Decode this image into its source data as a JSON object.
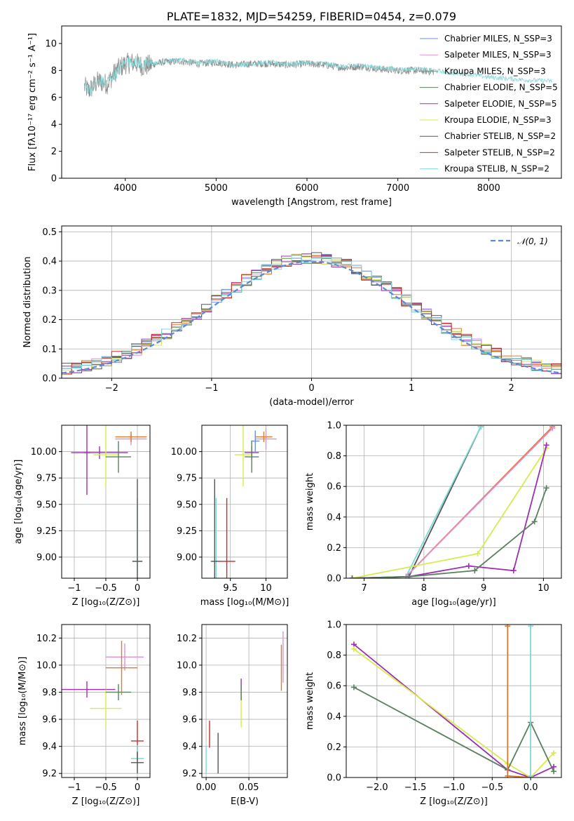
{
  "chart_data": [
    {
      "id": "spectrum",
      "type": "line",
      "title": "PLATE=1832, MJD=54259, FIBERID=0454, z=0.079",
      "xlabel": "wavelength [Angstrom, rest frame]",
      "ylabel": "Flux [fλ10⁻¹⁷ erg cm⁻² s⁻¹ A⁻¹]",
      "xlim": [
        3300,
        8800
      ],
      "ylim": [
        0,
        11.3
      ],
      "xticks": [
        4000,
        5000,
        6000,
        7000,
        8000
      ],
      "yticks": [
        0,
        2,
        4,
        6,
        8,
        10
      ],
      "grid": false,
      "legend_position": "top-right",
      "legend": [
        {
          "label": "Chabrier MILES, N_SSP=3",
          "color": "#6b8fd6"
        },
        {
          "label": "Salpeter MILES, N_SSP=3",
          "color": "#e08fd0"
        },
        {
          "label": "Kroupa MILES, N_SSP=3",
          "color": "#e0782e"
        },
        {
          "label": "Chabrier ELODIE, N_SSP=5",
          "color": "#5a8060"
        },
        {
          "label": "Salpeter ELODIE, N_SSP=5",
          "color": "#9b2fb0"
        },
        {
          "label": "Kroupa ELODIE, N_SSP=3",
          "color": "#d8ea4f"
        },
        {
          "label": "Chabrier STELIB, N_SSP=2",
          "color": "#555555"
        },
        {
          "label": "Salpeter STELIB, N_SSP=2",
          "color": "#c0302a"
        },
        {
          "label": "Kroupa STELIB, N_SSP=2",
          "color": "#7fd8d8"
        }
      ],
      "data_series": [
        {
          "name": "Data",
          "color": "#808080",
          "x": [
            3550,
            3600,
            3700,
            3800,
            3900,
            4000,
            4100,
            4200,
            4400,
            4600,
            4800,
            5000,
            5200,
            5400,
            5600,
            5800,
            6000,
            6200,
            6400,
            6600,
            6800,
            7000,
            7200,
            7400
          ],
          "y": [
            6.8,
            6.5,
            7.2,
            7.0,
            8.0,
            8.5,
            8.6,
            8.3,
            8.6,
            8.7,
            8.5,
            8.6,
            8.4,
            8.5,
            8.5,
            8.4,
            8.5,
            8.4,
            8.2,
            8.3,
            8.1,
            8.0,
            8.0,
            7.9
          ]
        },
        {
          "name": "Model",
          "color": "#7fd8d8",
          "x": [
            3550,
            3600,
            3700,
            3800,
            3900,
            4000,
            4100,
            4200,
            4400,
            4600,
            4800,
            5000,
            5200,
            5400,
            5600,
            5800,
            6000,
            6200,
            6400,
            6600,
            6800,
            7000,
            7200,
            7400,
            7600,
            7800,
            8000,
            8200,
            8400,
            8700
          ],
          "y": [
            6.9,
            6.6,
            7.1,
            7.2,
            7.8,
            8.6,
            8.7,
            8.4,
            8.6,
            8.8,
            8.6,
            8.7,
            8.4,
            8.5,
            8.6,
            8.5,
            8.6,
            8.5,
            8.3,
            8.4,
            8.2,
            8.1,
            8.1,
            8.0,
            7.8,
            7.7,
            7.5,
            7.4,
            7.3,
            7.2
          ]
        }
      ]
    },
    {
      "id": "residuals",
      "type": "line",
      "xlabel": "(data-model)/error",
      "ylabel": "Normed distribution",
      "xlim": [
        -2.5,
        2.5
      ],
      "ylim": [
        0,
        0.52
      ],
      "xticks": [
        -2,
        -1,
        0,
        1,
        2
      ],
      "yticks": [
        0.0,
        0.1,
        0.2,
        0.3,
        0.4,
        0.5
      ],
      "grid": true,
      "legend_position": "top-right",
      "gaussian_label": "𝒩(0, 1)",
      "gaussian_color": "#5a8ad6"
    },
    {
      "id": "z-age",
      "type": "scatter",
      "xlabel": "Z [log₁₀(Z/Z⊙)]",
      "ylabel": "age  [log₁₀(age/yr)]",
      "xlim": [
        -1.2,
        0.2
      ],
      "ylim": [
        8.8,
        10.25
      ],
      "xticks": [
        -1,
        -0.5,
        0
      ],
      "yticks": [
        9.0,
        9.25,
        9.5,
        9.75,
        10.0
      ],
      "grid": true,
      "points": [
        {
          "x": -0.6,
          "y": 9.99,
          "xerr": 0.45,
          "yerr": 0.06,
          "color": "#9b2fb0"
        },
        {
          "x": -0.8,
          "y": 9.99,
          "xerr": 0.05,
          "yerr": 0.4,
          "color": "#9b2fb0"
        },
        {
          "x": -0.5,
          "y": 9.97,
          "xerr": 0.2,
          "yerr": 0.3,
          "color": "#d8ea4f"
        },
        {
          "x": -0.3,
          "y": 9.95,
          "xerr": 0.2,
          "yerr": 0.15,
          "color": "#5a8060"
        },
        {
          "x": -0.1,
          "y": 10.12,
          "xerr": 0.25,
          "yerr": 0.06,
          "color": "#e08fd0"
        },
        {
          "x": -0.1,
          "y": 10.14,
          "xerr": 0.25,
          "yerr": 0.05,
          "color": "#e0782e"
        },
        {
          "x": 0.0,
          "y": 8.96,
          "xerr": 0.08,
          "yerr": 0.6,
          "color": "#7fd8d8"
        },
        {
          "x": 0.0,
          "y": 8.96,
          "xerr": 0.08,
          "yerr": 0.78,
          "color": "#555555"
        }
      ]
    },
    {
      "id": "mass-age",
      "type": "scatter",
      "xlabel": "mass [log₁₀(M/M⊙)]",
      "ylabel": "",
      "xlim": [
        9.1,
        10.3
      ],
      "ylim": [
        8.8,
        10.25
      ],
      "xticks": [
        9.5,
        10.0
      ],
      "yticks": [
        9.0,
        9.25,
        9.5,
        9.75,
        10.0
      ],
      "grid": true,
      "points": [
        {
          "x": 9.8,
          "y": 9.99,
          "xerr": 0.1,
          "yerr": 0.06,
          "color": "#9b2fb0"
        },
        {
          "x": 9.68,
          "y": 9.97,
          "xerr": 0.12,
          "yerr": 0.3,
          "color": "#d8ea4f"
        },
        {
          "x": 9.8,
          "y": 9.95,
          "xerr": 0.1,
          "yerr": 0.15,
          "color": "#5a8060"
        },
        {
          "x": 10.0,
          "y": 10.12,
          "xerr": 0.15,
          "yerr": 0.1,
          "color": "#e08fd0"
        },
        {
          "x": 9.97,
          "y": 10.14,
          "xerr": 0.12,
          "yerr": 0.05,
          "color": "#e0782e"
        },
        {
          "x": 9.3,
          "y": 8.96,
          "xerr": 0.08,
          "yerr": 0.6,
          "color": "#7fd8d8"
        },
        {
          "x": 9.28,
          "y": 8.96,
          "xerr": 0.05,
          "yerr": 0.78,
          "color": "#555555"
        },
        {
          "x": 9.45,
          "y": 8.96,
          "xerr": 0.12,
          "yerr": 0.6,
          "color": "#c0302a"
        },
        {
          "x": 9.85,
          "y": 10.1,
          "xerr": 0.06,
          "yerr": 0.1,
          "color": "#6b8fd6"
        }
      ]
    },
    {
      "id": "age-weight",
      "type": "line",
      "xlabel": "age  [log₁₀(age/yr)]",
      "ylabel": "mass weight",
      "xlim": [
        6.7,
        10.3
      ],
      "ylim": [
        0,
        1.0
      ],
      "xticks": [
        7,
        8,
        9,
        10
      ],
      "yticks": [
        0.0,
        0.2,
        0.4,
        0.6,
        0.8,
        1.0
      ],
      "grid": true,
      "series": [
        {
          "name": "Chabrier STELIB, N_SSP=2",
          "color": "#555555",
          "x": [
            7.75,
            8.95
          ],
          "y": [
            0.01,
            0.99
          ]
        },
        {
          "name": "Kroupa STELIB, N_SSP=2",
          "color": "#7fd8d8",
          "x": [
            7.7,
            8.95
          ],
          "y": [
            0.01,
            0.99
          ]
        },
        {
          "name": "Kroupa MILES, N_SSP=3",
          "color": "#e0782e",
          "x": [
            6.8,
            7.7,
            10.15
          ],
          "y": [
            0.0,
            0.01,
            0.99
          ]
        },
        {
          "name": "Salpeter MILES, N_SSP=3",
          "color": "#e08fd0",
          "x": [
            6.8,
            7.7,
            10.15
          ],
          "y": [
            0.0,
            0.01,
            0.98
          ]
        },
        {
          "name": "Kroupa ELODIE, N_SSP=3",
          "color": "#d8ea4f",
          "x": [
            6.8,
            8.9,
            10.05
          ],
          "y": [
            0.0,
            0.16,
            0.85
          ]
        },
        {
          "name": "Salpeter ELODIE, N_SSP=5",
          "color": "#9b2fb0",
          "x": [
            6.8,
            7.75,
            8.75,
            9.5,
            10.05
          ],
          "y": [
            0.0,
            0.01,
            0.08,
            0.05,
            0.87
          ]
        },
        {
          "name": "Chabrier ELODIE, N_SSP=5",
          "color": "#5a8060",
          "x": [
            6.8,
            7.75,
            8.85,
            9.85,
            10.05
          ],
          "y": [
            0.0,
            0.01,
            0.05,
            0.37,
            0.59
          ]
        }
      ]
    },
    {
      "id": "z-mass",
      "type": "scatter",
      "xlabel": "Z [log₁₀(Z/Z⊙)]",
      "ylabel": "mass [log₁₀(M/M⊙)]",
      "xlim": [
        -1.2,
        0.2
      ],
      "ylim": [
        9.17,
        10.3
      ],
      "xticks": [
        -1,
        -0.5,
        0
      ],
      "yticks": [
        9.2,
        9.4,
        9.6,
        9.8,
        10.0,
        10.2
      ],
      "grid": true,
      "points": [
        {
          "x": -0.8,
          "y": 9.82,
          "xerr": 0.45,
          "yerr": 0.06,
          "color": "#9b2fb0"
        },
        {
          "x": -0.5,
          "y": 9.68,
          "xerr": 0.25,
          "yerr": 0.14,
          "color": "#d8ea4f"
        },
        {
          "x": -0.3,
          "y": 9.8,
          "xerr": 0.2,
          "yerr": 0.06,
          "color": "#5a8060"
        },
        {
          "x": -0.2,
          "y": 10.06,
          "xerr": 0.3,
          "yerr": 0.1,
          "color": "#e08fd0"
        },
        {
          "x": -0.25,
          "y": 9.98,
          "xerr": 0.25,
          "yerr": 0.2,
          "color": "#e0782e"
        },
        {
          "x": 0.0,
          "y": 9.44,
          "xerr": 0.1,
          "yerr": 0.15,
          "color": "#c0302a"
        },
        {
          "x": 0.0,
          "y": 9.31,
          "xerr": 0.1,
          "yerr": 0.1,
          "color": "#7fd8d8"
        },
        {
          "x": 0.0,
          "y": 9.28,
          "xerr": 0.1,
          "yerr": 0.08,
          "color": "#555555"
        }
      ]
    },
    {
      "id": "ebv-mass",
      "type": "scatter",
      "xlabel": "E(B-V)",
      "ylabel": "",
      "xlim": [
        -0.005,
        0.095
      ],
      "ylim": [
        9.17,
        10.3
      ],
      "xticks": [
        0.0,
        0.05
      ],
      "yticks": [
        9.2,
        9.4,
        9.6,
        9.8,
        10.0,
        10.2
      ],
      "grid": true,
      "points": [
        {
          "x": 0.004,
          "y": 9.49,
          "yerr": 0.1,
          "color": "#c0302a"
        },
        {
          "x": 0.0,
          "y": 9.3,
          "yerr": 0.1,
          "color": "#7fd8d8"
        },
        {
          "x": 0.014,
          "y": 9.35,
          "yerr": 0.15,
          "color": "#555555"
        },
        {
          "x": 0.041,
          "y": 9.82,
          "yerr": 0.08,
          "color": "#9b2fb0"
        },
        {
          "x": 0.041,
          "y": 9.68,
          "yerr": 0.14,
          "color": "#d8ea4f"
        },
        {
          "x": 0.041,
          "y": 9.8,
          "yerr": 0.06,
          "color": "#5a8060"
        },
        {
          "x": 0.088,
          "y": 9.98,
          "yerr": 0.17,
          "color": "#e0782e"
        },
        {
          "x": 0.09,
          "y": 10.06,
          "yerr": 0.19,
          "color": "#e08fd0"
        }
      ]
    },
    {
      "id": "z-weight",
      "type": "line",
      "xlabel": "Z [log₁₀(Z/Z⊙)]",
      "ylabel": "mass weight",
      "xlim": [
        -2.4,
        0.4
      ],
      "ylim": [
        0,
        1.0
      ],
      "xticks": [
        -2.0,
        -1.5,
        -1.0,
        -0.5,
        0.0
      ],
      "yticks": [
        0.0,
        0.2,
        0.4,
        0.6,
        0.8,
        1.0
      ],
      "grid": true,
      "series": [
        {
          "name": "Salpeter ELODIE, N_SSP=5",
          "color": "#9b2fb0",
          "x": [
            -2.3,
            -0.3,
            0.0,
            0.3
          ],
          "y": [
            0.87,
            0.05,
            0.0,
            0.07
          ]
        },
        {
          "name": "Kroupa ELODIE, N_SSP=3",
          "color": "#d8ea4f",
          "x": [
            -2.3,
            -0.3,
            0.0,
            0.3
          ],
          "y": [
            0.84,
            0.09,
            0.0,
            0.16
          ]
        },
        {
          "name": "Chabrier ELODIE, N_SSP=5",
          "color": "#5a8060",
          "x": [
            -2.3,
            -0.3,
            0.0,
            0.3
          ],
          "y": [
            0.59,
            0.05,
            0.36,
            0.04
          ]
        },
        {
          "name": "Kroupa MILES, N_SSP=3",
          "color": "#e0782e",
          "x": [
            -0.3,
            -0.3,
            0.0
          ],
          "y": [
            0.99,
            0.01,
            0.0
          ]
        },
        {
          "name": "Kroupa STELIB, N_SSP=2",
          "color": "#7fd8d8",
          "x": [
            0.0,
            0.0
          ],
          "y": [
            0.99,
            0.01
          ]
        }
      ]
    }
  ]
}
